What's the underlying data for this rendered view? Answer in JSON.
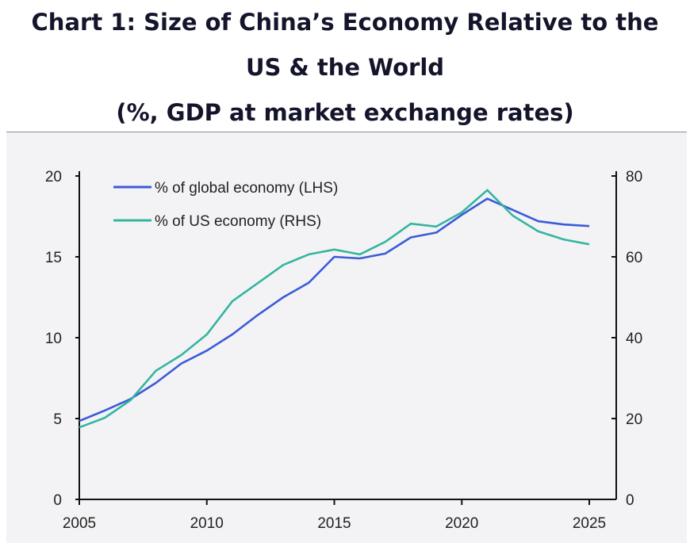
{
  "title_lines": [
    "Chart 1: Size of China’s Economy Relative to the",
    "US & the World",
    "(%, GDP at market exchange rates)"
  ],
  "chart_data": {
    "type": "line",
    "title": "Chart 1: Size of China’s Economy Relative to the US & the World (%, GDP at market exchange rates)",
    "x": [
      2005,
      2006,
      2007,
      2008,
      2009,
      2010,
      2011,
      2012,
      2013,
      2014,
      2015,
      2016,
      2017,
      2018,
      2019,
      2020,
      2021,
      2022,
      2023,
      2024,
      2025
    ],
    "xlim": [
      2005,
      2025
    ],
    "xticks": [
      2005,
      2010,
      2015,
      2020,
      2025
    ],
    "ylim_left": [
      0,
      20
    ],
    "yticks_left": [
      0,
      5,
      10,
      15,
      20
    ],
    "ylim_right": [
      0,
      80
    ],
    "yticks_right": [
      0,
      20,
      40,
      60,
      80
    ],
    "grid": false,
    "legend_placement": "top-left",
    "series": [
      {
        "name": "% of global economy (LHS)",
        "axis": "left",
        "color": "#3b5bd8",
        "values": [
          4.85,
          5.5,
          6.2,
          7.2,
          8.4,
          9.2,
          10.2,
          11.4,
          12.5,
          13.4,
          15.0,
          14.9,
          15.2,
          16.2,
          16.5,
          17.6,
          18.6,
          17.9,
          17.2,
          17.0,
          16.9
        ]
      },
      {
        "name": "% of US economy (RHS)",
        "axis": "right",
        "color": "#35b5a0",
        "values": [
          17.8,
          20.2,
          24.5,
          31.8,
          35.7,
          40.8,
          49.0,
          53.5,
          58.0,
          60.6,
          61.8,
          60.6,
          63.7,
          68.2,
          67.5,
          71.0,
          76.5,
          70.2,
          66.3,
          64.3,
          63.1
        ]
      }
    ]
  }
}
